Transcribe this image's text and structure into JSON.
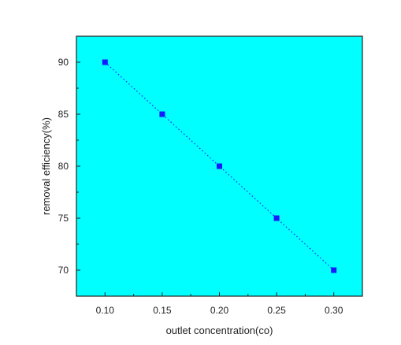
{
  "chart_data": {
    "type": "scatter",
    "title": "",
    "xlabel": "outlet concentration(co)",
    "ylabel": "removal efficiency(%)",
    "x": [
      0.1,
      0.15,
      0.2,
      0.25,
      0.3
    ],
    "y": [
      90,
      85,
      80,
      75,
      70
    ],
    "xlim": [
      0.075,
      0.325
    ],
    "ylim": [
      67.5,
      92.5
    ],
    "xticks": [
      "0.10",
      "0.15",
      "0.20",
      "0.25",
      "0.30"
    ],
    "yticks": [
      "70",
      "75",
      "80",
      "85",
      "90"
    ],
    "xtick_values": [
      0.1,
      0.15,
      0.2,
      0.25,
      0.3
    ],
    "ytick_values": [
      70,
      75,
      80,
      85,
      90
    ],
    "connector": "dotted line through points",
    "grid": false,
    "colors": {
      "plot_background": "#00ffff",
      "marker": "#1a1aff",
      "line": "#1a1aff",
      "axis": "#222222"
    }
  }
}
